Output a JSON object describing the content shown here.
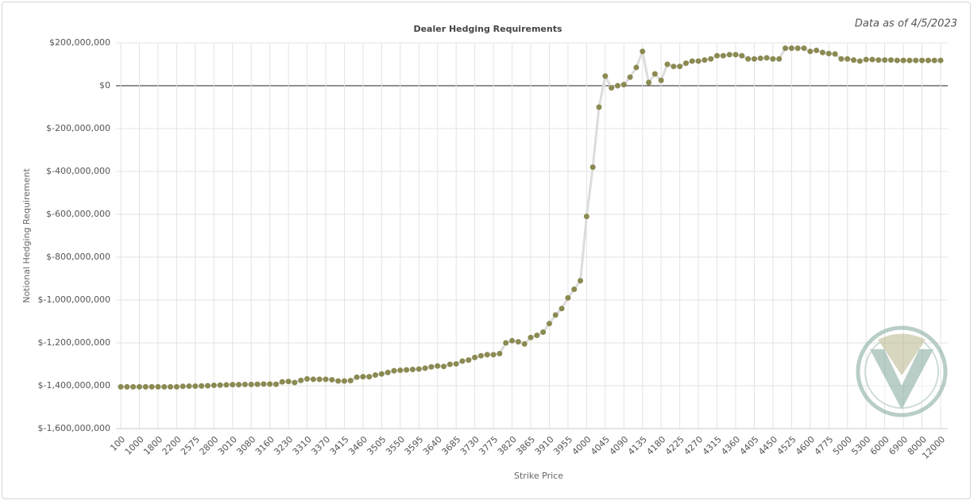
{
  "chart_data": {
    "type": "line",
    "title": "Dealer Hedging Requirements",
    "subtitle": "Data as of 4/5/2023",
    "x_label": "Strike Price",
    "y_label": "Notional Hedging Requirement",
    "color": "#8a8a52",
    "line_color": "#dcdcdc",
    "grid": true,
    "ylim": [
      -1600000000,
      200000000
    ],
    "yticks": [
      {
        "value": -1600000000,
        "label": "$-1,600,000,000"
      },
      {
        "value": -1400000000,
        "label": "$-1,400,000,000"
      },
      {
        "value": -1200000000,
        "label": "$-1,200,000,000"
      },
      {
        "value": -1000000000,
        "label": "$-1,000,000,000"
      },
      {
        "value": -800000000,
        "label": "$-800,000,000"
      },
      {
        "value": -600000000,
        "label": "$-600,000,000"
      },
      {
        "value": -400000000,
        "label": "$-400,000,000"
      },
      {
        "value": -200000000,
        "label": "$-200,000,000"
      },
      {
        "value": 0,
        "label": "$0"
      },
      {
        "value": 200000000,
        "label": "$200,000,000"
      }
    ],
    "categories": [
      "100",
      null,
      null,
      "1000",
      null,
      null,
      "1800",
      null,
      null,
      "2200",
      null,
      null,
      "2575",
      null,
      null,
      "2800",
      null,
      null,
      "3010",
      null,
      null,
      "3080",
      null,
      null,
      "3160",
      null,
      null,
      "3230",
      null,
      null,
      "3310",
      null,
      null,
      "3370",
      null,
      null,
      "3415",
      null,
      null,
      "3460",
      null,
      null,
      "3505",
      null,
      null,
      "3550",
      null,
      null,
      "3595",
      null,
      null,
      "3640",
      null,
      null,
      "3685",
      null,
      null,
      "3730",
      null,
      null,
      "3775",
      null,
      null,
      "3820",
      null,
      null,
      "3865",
      null,
      null,
      "3910",
      null,
      null,
      "3955",
      null,
      null,
      "4000",
      null,
      null,
      "4045",
      null,
      null,
      "4090",
      null,
      null,
      "4135",
      null,
      null,
      "4180",
      null,
      null,
      "4225",
      null,
      null,
      "4270",
      null,
      null,
      "4315",
      null,
      null,
      "4360",
      null,
      null,
      "4405",
      null,
      null,
      "4450",
      null,
      null,
      "4525",
      null,
      null,
      "4600",
      null,
      null,
      "4775",
      null,
      null,
      "5000",
      null,
      null,
      "5300",
      null,
      null,
      "6000",
      null,
      null,
      "6900",
      null,
      null,
      "8000",
      null,
      null,
      "12000"
    ],
    "values": [
      -1405000000,
      -1405000000,
      -1405000000,
      -1405000000,
      -1405000000,
      -1405000000,
      -1405000000,
      -1405000000,
      -1405000000,
      -1405000000,
      -1403000000,
      -1402000000,
      -1402000000,
      -1401000000,
      -1400000000,
      -1398000000,
      -1397000000,
      -1396000000,
      -1395000000,
      -1395000000,
      -1394000000,
      -1394000000,
      -1393000000,
      -1392000000,
      -1392000000,
      -1393000000,
      -1382000000,
      -1380000000,
      -1385000000,
      -1375000000,
      -1368000000,
      -1370000000,
      -1370000000,
      -1370000000,
      -1372000000,
      -1378000000,
      -1378000000,
      -1376000000,
      -1360000000,
      -1358000000,
      -1358000000,
      -1350000000,
      -1345000000,
      -1338000000,
      -1330000000,
      -1328000000,
      -1326000000,
      -1324000000,
      -1322000000,
      -1318000000,
      -1312000000,
      -1308000000,
      -1310000000,
      -1300000000,
      -1298000000,
      -1285000000,
      -1280000000,
      -1268000000,
      -1260000000,
      -1255000000,
      -1255000000,
      -1250000000,
      -1200000000,
      -1190000000,
      -1195000000,
      -1205000000,
      -1175000000,
      -1165000000,
      -1150000000,
      -1110000000,
      -1070000000,
      -1040000000,
      -990000000,
      -950000000,
      -910000000,
      -610000000,
      -380000000,
      -100000000,
      45000000,
      -10000000,
      0,
      5000000,
      40000000,
      85000000,
      160000000,
      15000000,
      55000000,
      25000000,
      100000000,
      90000000,
      90000000,
      105000000,
      115000000,
      115000000,
      120000000,
      125000000,
      140000000,
      140000000,
      145000000,
      145000000,
      140000000,
      125000000,
      125000000,
      128000000,
      130000000,
      125000000,
      125000000,
      175000000,
      175000000,
      175000000,
      175000000,
      160000000,
      165000000,
      155000000,
      150000000,
      148000000,
      125000000,
      125000000,
      120000000,
      115000000,
      122000000,
      122000000,
      120000000,
      120000000,
      120000000,
      118000000,
      118000000,
      118000000,
      118000000,
      118000000,
      118000000,
      118000000,
      118000000
    ]
  }
}
